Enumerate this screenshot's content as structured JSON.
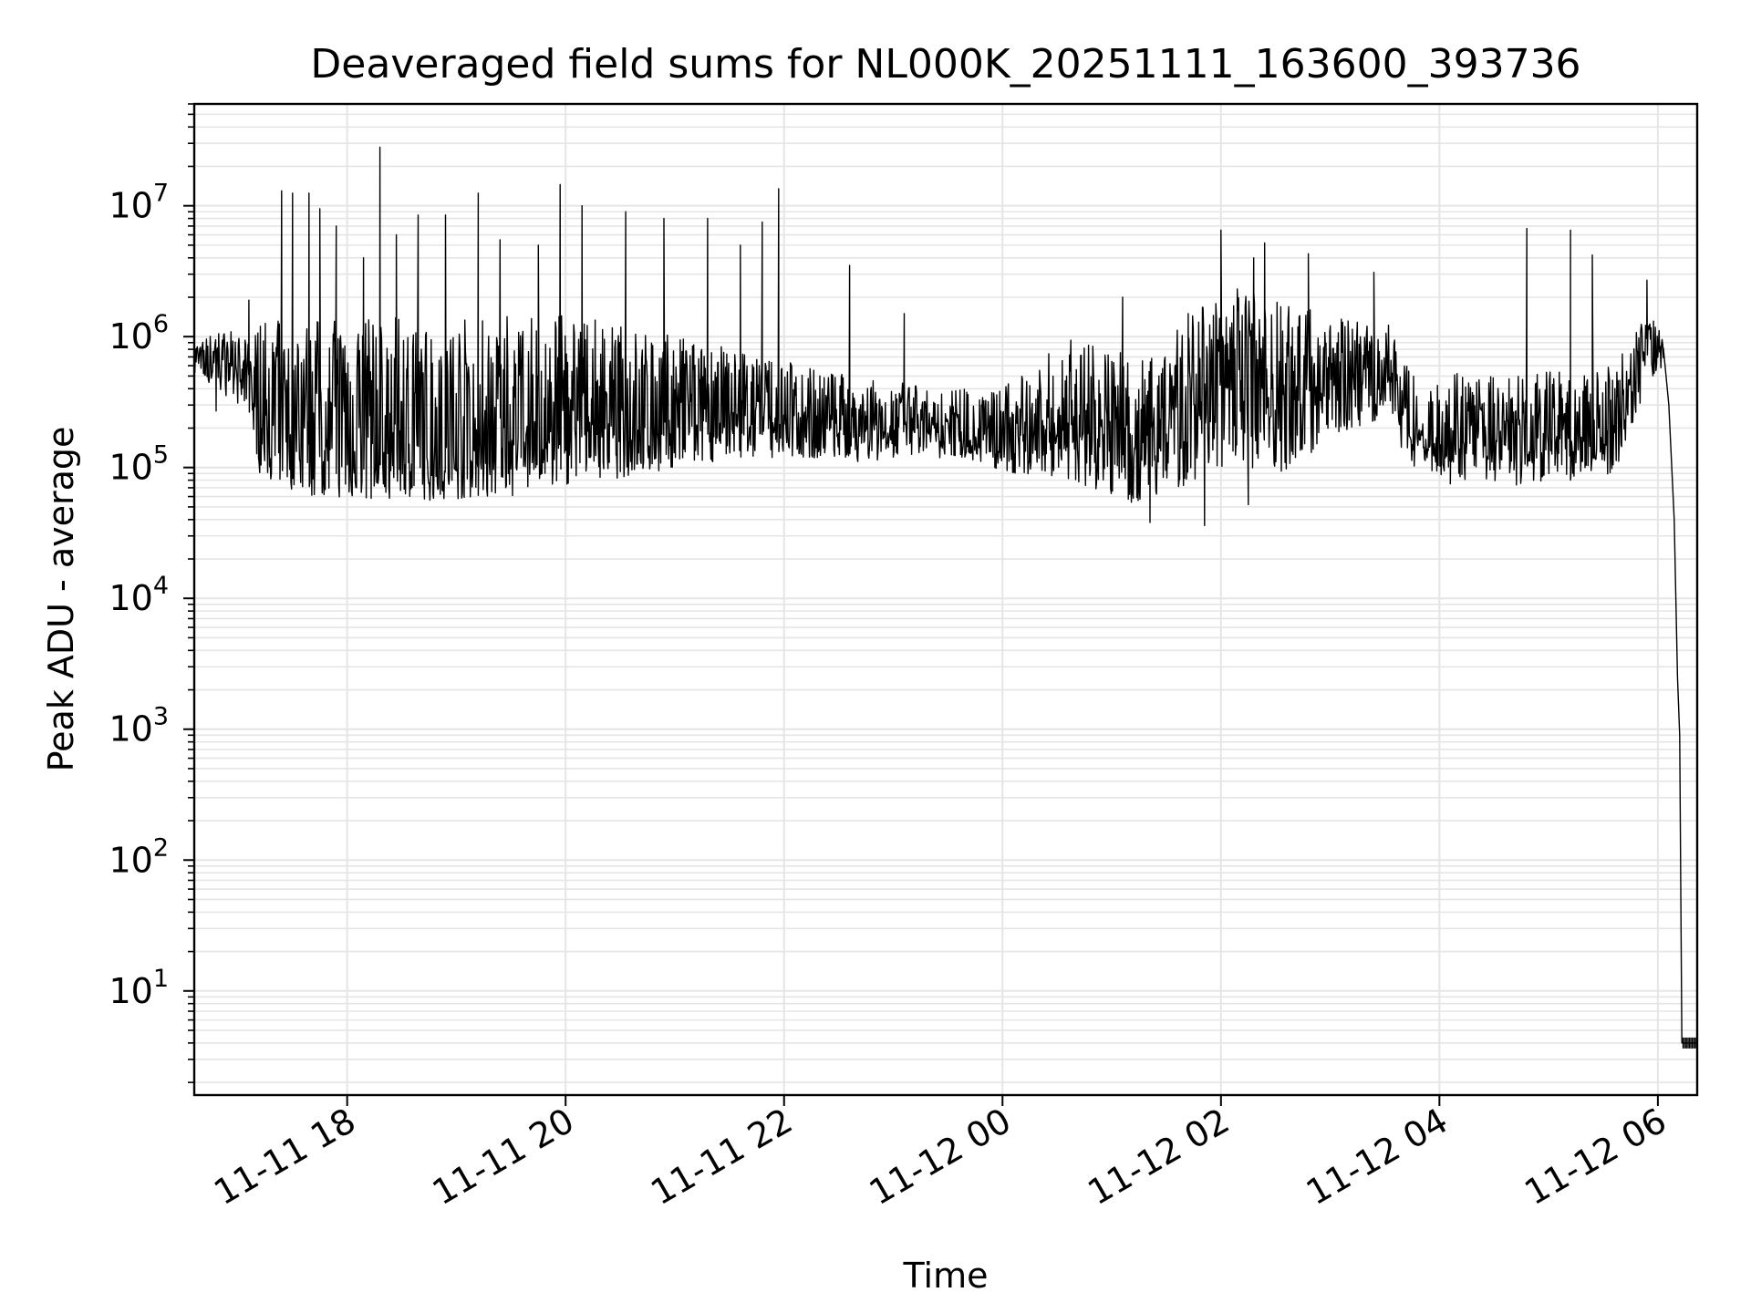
{
  "chart_data": {
    "type": "line",
    "title": "Deaveraged field sums for NL000K_20251111_163600_393736",
    "xlabel": "Time",
    "ylabel": "Peak ADU - average",
    "yscale": "log",
    "grid": true,
    "legend": "none",
    "line_color": "#000000",
    "grid_color": "#e5e5e5",
    "x_unit": "hours since 11-11 16:36",
    "xlim": [
      0,
      13.76
    ],
    "ylim": [
      1.6,
      60000000
    ],
    "x_ticks": [
      {
        "value": 1.4,
        "label": "11-11 18"
      },
      {
        "value": 3.4,
        "label": "11-11 20"
      },
      {
        "value": 5.4,
        "label": "11-11 22"
      },
      {
        "value": 7.4,
        "label": "11-12 00"
      },
      {
        "value": 9.4,
        "label": "11-12 02"
      },
      {
        "value": 11.4,
        "label": "11-12 04"
      },
      {
        "value": 13.4,
        "label": "11-12 06"
      }
    ],
    "y_ticks": [
      {
        "value": 10,
        "base": "10",
        "exp": "1"
      },
      {
        "value": 100,
        "base": "10",
        "exp": "2"
      },
      {
        "value": 1000,
        "base": "10",
        "exp": "3"
      },
      {
        "value": 10000,
        "base": "10",
        "exp": "4"
      },
      {
        "value": 100000,
        "base": "10",
        "exp": "5"
      },
      {
        "value": 1000000,
        "base": "10",
        "exp": "6"
      },
      {
        "value": 10000000,
        "base": "10",
        "exp": "7"
      }
    ],
    "envelope": [
      {
        "x": 0.0,
        "low": 500000,
        "high": 900000,
        "base": 700000
      },
      {
        "x": 0.3,
        "low": 350000,
        "high": 1200000,
        "base": 700000
      },
      {
        "x": 0.5,
        "low": 250000,
        "high": 900000,
        "base": 450000
      },
      {
        "x": 0.6,
        "low": 90000,
        "high": 1300000,
        "base": 300000
      },
      {
        "x": 1.0,
        "low": 60000,
        "high": 1400000,
        "base": 160000
      },
      {
        "x": 2.0,
        "low": 55000,
        "high": 1400000,
        "base": 150000
      },
      {
        "x": 3.3,
        "low": 60000,
        "high": 1500000,
        "base": 170000
      },
      {
        "x": 3.6,
        "low": 75000,
        "high": 1400000,
        "base": 220000
      },
      {
        "x": 5.0,
        "low": 120000,
        "high": 800000,
        "base": 240000
      },
      {
        "x": 6.0,
        "low": 110000,
        "high": 500000,
        "base": 220000
      },
      {
        "x": 7.0,
        "low": 120000,
        "high": 400000,
        "base": 190000
      },
      {
        "x": 7.5,
        "low": 90000,
        "high": 450000,
        "base": 150000
      },
      {
        "x": 8.0,
        "low": 80000,
        "high": 1000000,
        "base": 200000
      },
      {
        "x": 8.7,
        "low": 50000,
        "high": 700000,
        "base": 160000
      },
      {
        "x": 9.0,
        "low": 70000,
        "high": 1200000,
        "base": 400000
      },
      {
        "x": 9.5,
        "low": 100000,
        "high": 2500000,
        "base": 500000
      },
      {
        "x": 10.0,
        "low": 90000,
        "high": 1800000,
        "base": 350000
      },
      {
        "x": 10.6,
        "low": 200000,
        "high": 1500000,
        "base": 600000
      },
      {
        "x": 11.0,
        "low": 250000,
        "high": 1200000,
        "base": 550000
      },
      {
        "x": 11.05,
        "low": 100000,
        "high": 600000,
        "base": 180000
      },
      {
        "x": 12.0,
        "low": 70000,
        "high": 500000,
        "base": 150000
      },
      {
        "x": 13.0,
        "low": 90000,
        "high": 600000,
        "base": 180000
      },
      {
        "x": 13.3,
        "low": 400000,
        "high": 1500000,
        "base": 700000
      },
      {
        "x": 13.45,
        "low": 600000,
        "high": 1200000,
        "base": 850000
      }
    ],
    "spikes": [
      {
        "x": 0.5,
        "y": 1900000
      },
      {
        "x": 0.8,
        "y": 13000000
      },
      {
        "x": 0.9,
        "y": 12500000
      },
      {
        "x": 1.05,
        "y": 12500000
      },
      {
        "x": 1.15,
        "y": 9500000
      },
      {
        "x": 1.3,
        "y": 7000000
      },
      {
        "x": 1.55,
        "y": 4000000
      },
      {
        "x": 1.7,
        "y": 28000000
      },
      {
        "x": 1.85,
        "y": 6000000
      },
      {
        "x": 2.05,
        "y": 8500000
      },
      {
        "x": 2.3,
        "y": 8500000
      },
      {
        "x": 2.6,
        "y": 12500000
      },
      {
        "x": 2.8,
        "y": 5500000
      },
      {
        "x": 3.15,
        "y": 5000000
      },
      {
        "x": 3.35,
        "y": 14500000
      },
      {
        "x": 3.55,
        "y": 10000000
      },
      {
        "x": 3.95,
        "y": 9000000
      },
      {
        "x": 4.3,
        "y": 8000000
      },
      {
        "x": 4.7,
        "y": 8000000
      },
      {
        "x": 5.0,
        "y": 5000000
      },
      {
        "x": 5.2,
        "y": 7500000
      },
      {
        "x": 5.35,
        "y": 13500000
      },
      {
        "x": 6.0,
        "y": 3500000
      },
      {
        "x": 6.5,
        "y": 1500000
      },
      {
        "x": 8.5,
        "y": 2000000
      },
      {
        "x": 9.1,
        "y": 1500000
      },
      {
        "x": 9.4,
        "y": 6500000
      },
      {
        "x": 9.7,
        "y": 4000000
      },
      {
        "x": 9.8,
        "y": 5200000
      },
      {
        "x": 10.2,
        "y": 4300000
      },
      {
        "x": 10.8,
        "y": 3100000
      },
      {
        "x": 12.2,
        "y": 6700000
      },
      {
        "x": 12.6,
        "y": 6500000
      },
      {
        "x": 12.8,
        "y": 4200000
      },
      {
        "x": 13.3,
        "y": 2700000
      }
    ],
    "dips": [
      {
        "x": 0.2,
        "y": 270000
      },
      {
        "x": 1.3,
        "y": 90000
      },
      {
        "x": 6.4,
        "y": 120000
      },
      {
        "x": 8.75,
        "y": 38000
      },
      {
        "x": 9.25,
        "y": 36000
      },
      {
        "x": 9.65,
        "y": 52000
      },
      {
        "x": 11.5,
        "y": 75000
      },
      {
        "x": 12.6,
        "y": 80000
      }
    ],
    "drop": [
      {
        "x": 13.45,
        "y": 820000
      },
      {
        "x": 13.5,
        "y": 300000
      },
      {
        "x": 13.55,
        "y": 40000
      },
      {
        "x": 13.58,
        "y": 2500
      },
      {
        "x": 13.6,
        "y": 900
      },
      {
        "x": 13.62,
        "y": 4
      },
      {
        "x": 13.76,
        "y": 4
      }
    ]
  }
}
